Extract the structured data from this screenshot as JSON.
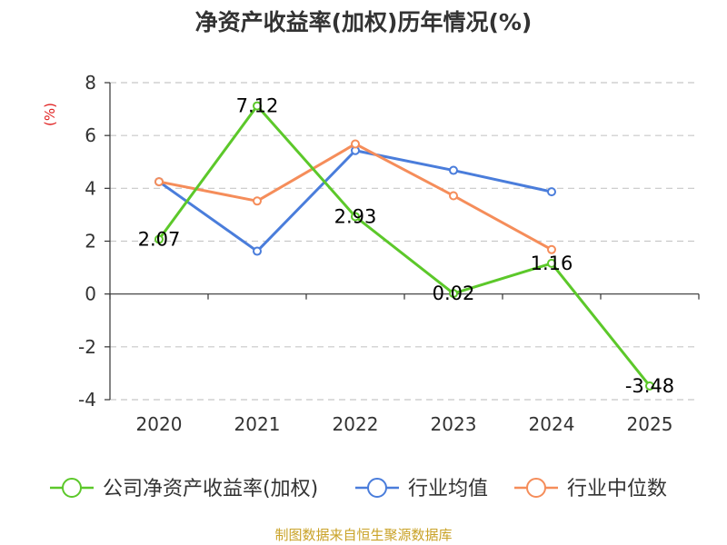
{
  "chart_data": {
    "type": "line",
    "title": "净资产收益率(加权)历年情况(%)",
    "ylabel": "(%)",
    "xlabel": "",
    "categories": [
      "2020",
      "2021",
      "2022",
      "2023",
      "2024",
      "2025"
    ],
    "ylim": [
      -4,
      8
    ],
    "yticks": [
      -4,
      -2,
      0,
      2,
      4,
      6,
      8
    ],
    "grid": true,
    "legend_position": "bottom",
    "series": [
      {
        "name": "公司净资产收益率(加权)",
        "color": "#5cc82a",
        "values": [
          2.07,
          7.12,
          2.93,
          0.02,
          1.16,
          -3.48
        ],
        "labels": [
          "2.07",
          "7.12",
          "2.93",
          "0.02",
          "1.16",
          "-3.48"
        ]
      },
      {
        "name": "行业均值",
        "color": "#4a7ddb",
        "values": [
          4.25,
          1.62,
          5.43,
          4.68,
          3.87,
          null
        ]
      },
      {
        "name": "行业中位数",
        "color": "#f58d5a",
        "values": [
          4.25,
          3.52,
          5.68,
          3.72,
          1.68,
          null
        ]
      }
    ]
  },
  "source": "制图数据来自恒生聚源数据库"
}
